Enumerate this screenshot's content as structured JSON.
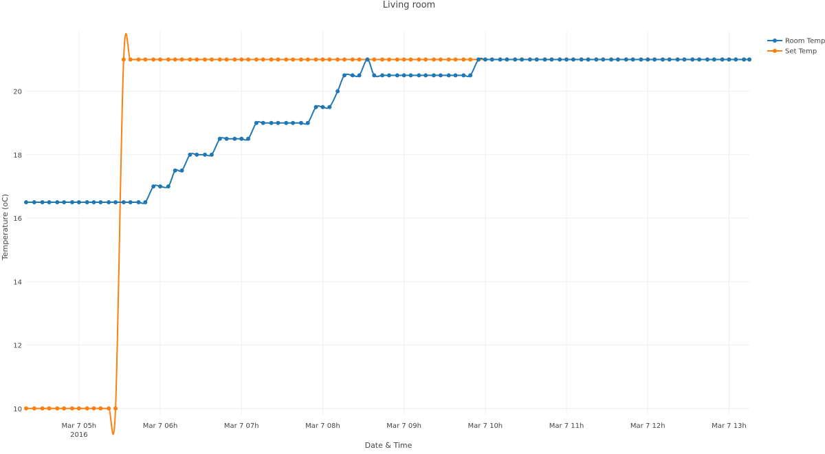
{
  "chart_data": {
    "type": "line",
    "title": "Living room",
    "xlabel": "Date & Time",
    "ylabel": "Temperature (oC)",
    "x_range": [
      "2016-03-07 04:21",
      "2016-03-07 13:15"
    ],
    "ylim": [
      9.8,
      21.9
    ],
    "yticks": [
      10,
      12,
      14,
      16,
      18,
      20
    ],
    "xticks": [
      {
        "time": "2016-03-07 05:00",
        "label": "Mar 7 05h",
        "sublabel": "2016"
      },
      {
        "time": "2016-03-07 06:00",
        "label": "Mar 7 06h",
        "sublabel": ""
      },
      {
        "time": "2016-03-07 07:00",
        "label": "Mar 7 07h",
        "sublabel": ""
      },
      {
        "time": "2016-03-07 08:00",
        "label": "Mar 7 08h",
        "sublabel": ""
      },
      {
        "time": "2016-03-07 09:00",
        "label": "Mar 7 09h",
        "sublabel": ""
      },
      {
        "time": "2016-03-07 10:00",
        "label": "Mar 7 10h",
        "sublabel": ""
      },
      {
        "time": "2016-03-07 11:00",
        "label": "Mar 7 11h",
        "sublabel": ""
      },
      {
        "time": "2016-03-07 12:00",
        "label": "Mar 7 12h",
        "sublabel": ""
      },
      {
        "time": "2016-03-07 13:00",
        "label": "Mar 7 13h",
        "sublabel": ""
      }
    ],
    "grid": true,
    "legend_position": "top-right",
    "series": [
      {
        "name": "Room Temp",
        "color": "#1f77b4",
        "points": [
          [
            "2016-03-07 04:21",
            16.5
          ],
          [
            "2016-03-07 04:27",
            16.5
          ],
          [
            "2016-03-07 04:33",
            16.5
          ],
          [
            "2016-03-07 04:38",
            16.5
          ],
          [
            "2016-03-07 04:44",
            16.5
          ],
          [
            "2016-03-07 04:49",
            16.5
          ],
          [
            "2016-03-07 04:55",
            16.5
          ],
          [
            "2016-03-07 05:00",
            16.5
          ],
          [
            "2016-03-07 05:06",
            16.5
          ],
          [
            "2016-03-07 05:11",
            16.5
          ],
          [
            "2016-03-07 05:16",
            16.5
          ],
          [
            "2016-03-07 05:22",
            16.5
          ],
          [
            "2016-03-07 05:27",
            16.5
          ],
          [
            "2016-03-07 05:33",
            16.5
          ],
          [
            "2016-03-07 05:38",
            16.5
          ],
          [
            "2016-03-07 05:44",
            16.5
          ],
          [
            "2016-03-07 05:49",
            16.5
          ],
          [
            "2016-03-07 05:55",
            17.0
          ],
          [
            "2016-03-07 06:00",
            17.0
          ],
          [
            "2016-03-07 06:06",
            17.0
          ],
          [
            "2016-03-07 06:11",
            17.5
          ],
          [
            "2016-03-07 06:16",
            17.5
          ],
          [
            "2016-03-07 06:22",
            18.0
          ],
          [
            "2016-03-07 06:27",
            18.0
          ],
          [
            "2016-03-07 06:33",
            18.0
          ],
          [
            "2016-03-07 06:38",
            18.0
          ],
          [
            "2016-03-07 06:44",
            18.5
          ],
          [
            "2016-03-07 06:49",
            18.5
          ],
          [
            "2016-03-07 06:55",
            18.5
          ],
          [
            "2016-03-07 07:00",
            18.5
          ],
          [
            "2016-03-07 07:05",
            18.5
          ],
          [
            "2016-03-07 07:11",
            19.0
          ],
          [
            "2016-03-07 07:16",
            19.0
          ],
          [
            "2016-03-07 07:22",
            19.0
          ],
          [
            "2016-03-07 07:27",
            19.0
          ],
          [
            "2016-03-07 07:33",
            19.0
          ],
          [
            "2016-03-07 07:38",
            19.0
          ],
          [
            "2016-03-07 07:44",
            19.0
          ],
          [
            "2016-03-07 07:49",
            19.0
          ],
          [
            "2016-03-07 07:55",
            19.5
          ],
          [
            "2016-03-07 08:00",
            19.5
          ],
          [
            "2016-03-07 08:05",
            19.5
          ],
          [
            "2016-03-07 08:11",
            20.0
          ],
          [
            "2016-03-07 08:16",
            20.5
          ],
          [
            "2016-03-07 08:22",
            20.5
          ],
          [
            "2016-03-07 08:27",
            20.5
          ],
          [
            "2016-03-07 08:33",
            21.0
          ],
          [
            "2016-03-07 08:38",
            20.5
          ],
          [
            "2016-03-07 08:44",
            20.5
          ],
          [
            "2016-03-07 08:49",
            20.5
          ],
          [
            "2016-03-07 08:55",
            20.5
          ],
          [
            "2016-03-07 09:00",
            20.5
          ],
          [
            "2016-03-07 09:05",
            20.5
          ],
          [
            "2016-03-07 09:11",
            20.5
          ],
          [
            "2016-03-07 09:16",
            20.5
          ],
          [
            "2016-03-07 09:22",
            20.5
          ],
          [
            "2016-03-07 09:27",
            20.5
          ],
          [
            "2016-03-07 09:33",
            20.5
          ],
          [
            "2016-03-07 09:38",
            20.5
          ],
          [
            "2016-03-07 09:44",
            20.5
          ],
          [
            "2016-03-07 09:49",
            20.5
          ],
          [
            "2016-03-07 09:55",
            21.0
          ],
          [
            "2016-03-07 10:00",
            21.0
          ],
          [
            "2016-03-07 10:05",
            21.0
          ],
          [
            "2016-03-07 10:11",
            21.0
          ],
          [
            "2016-03-07 10:16",
            21.0
          ],
          [
            "2016-03-07 10:22",
            21.0
          ],
          [
            "2016-03-07 10:27",
            21.0
          ],
          [
            "2016-03-07 10:33",
            21.0
          ],
          [
            "2016-03-07 10:38",
            21.0
          ],
          [
            "2016-03-07 10:44",
            21.0
          ],
          [
            "2016-03-07 10:49",
            21.0
          ],
          [
            "2016-03-07 10:55",
            21.0
          ],
          [
            "2016-03-07 11:00",
            21.0
          ],
          [
            "2016-03-07 11:05",
            21.0
          ],
          [
            "2016-03-07 11:11",
            21.0
          ],
          [
            "2016-03-07 11:16",
            21.0
          ],
          [
            "2016-03-07 11:22",
            21.0
          ],
          [
            "2016-03-07 11:27",
            21.0
          ],
          [
            "2016-03-07 11:33",
            21.0
          ],
          [
            "2016-03-07 11:38",
            21.0
          ],
          [
            "2016-03-07 11:44",
            21.0
          ],
          [
            "2016-03-07 11:49",
            21.0
          ],
          [
            "2016-03-07 11:55",
            21.0
          ],
          [
            "2016-03-07 12:00",
            21.0
          ],
          [
            "2016-03-07 12:05",
            21.0
          ],
          [
            "2016-03-07 12:11",
            21.0
          ],
          [
            "2016-03-07 12:16",
            21.0
          ],
          [
            "2016-03-07 12:22",
            21.0
          ],
          [
            "2016-03-07 12:27",
            21.0
          ],
          [
            "2016-03-07 12:33",
            21.0
          ],
          [
            "2016-03-07 12:38",
            21.0
          ],
          [
            "2016-03-07 12:44",
            21.0
          ],
          [
            "2016-03-07 12:49",
            21.0
          ],
          [
            "2016-03-07 12:55",
            21.0
          ],
          [
            "2016-03-07 13:00",
            21.0
          ],
          [
            "2016-03-07 13:05",
            21.0
          ],
          [
            "2016-03-07 13:11",
            21.0
          ],
          [
            "2016-03-07 13:15",
            21.0
          ]
        ]
      },
      {
        "name": "Set Temp",
        "color": "#ff7f0e",
        "points": [
          [
            "2016-03-07 04:21",
            10.0
          ],
          [
            "2016-03-07 04:27",
            10.0
          ],
          [
            "2016-03-07 04:33",
            10.0
          ],
          [
            "2016-03-07 04:38",
            10.0
          ],
          [
            "2016-03-07 04:44",
            10.0
          ],
          [
            "2016-03-07 04:49",
            10.0
          ],
          [
            "2016-03-07 04:55",
            10.0
          ],
          [
            "2016-03-07 05:00",
            10.0
          ],
          [
            "2016-03-07 05:06",
            10.0
          ],
          [
            "2016-03-07 05:11",
            10.0
          ],
          [
            "2016-03-07 05:16",
            10.0
          ],
          [
            "2016-03-07 05:22",
            10.0
          ],
          [
            "2016-03-07 05:27",
            10.0
          ],
          [
            "2016-03-07 05:33",
            21.0
          ],
          [
            "2016-03-07 05:38",
            21.0
          ],
          [
            "2016-03-07 05:44",
            21.0
          ],
          [
            "2016-03-07 05:49",
            21.0
          ],
          [
            "2016-03-07 05:55",
            21.0
          ],
          [
            "2016-03-07 06:00",
            21.0
          ],
          [
            "2016-03-07 06:06",
            21.0
          ],
          [
            "2016-03-07 06:11",
            21.0
          ],
          [
            "2016-03-07 06:16",
            21.0
          ],
          [
            "2016-03-07 06:22",
            21.0
          ],
          [
            "2016-03-07 06:27",
            21.0
          ],
          [
            "2016-03-07 06:33",
            21.0
          ],
          [
            "2016-03-07 06:38",
            21.0
          ],
          [
            "2016-03-07 06:44",
            21.0
          ],
          [
            "2016-03-07 06:49",
            21.0
          ],
          [
            "2016-03-07 06:55",
            21.0
          ],
          [
            "2016-03-07 07:00",
            21.0
          ],
          [
            "2016-03-07 07:05",
            21.0
          ],
          [
            "2016-03-07 07:11",
            21.0
          ],
          [
            "2016-03-07 07:16",
            21.0
          ],
          [
            "2016-03-07 07:22",
            21.0
          ],
          [
            "2016-03-07 07:27",
            21.0
          ],
          [
            "2016-03-07 07:33",
            21.0
          ],
          [
            "2016-03-07 07:38",
            21.0
          ],
          [
            "2016-03-07 07:44",
            21.0
          ],
          [
            "2016-03-07 07:49",
            21.0
          ],
          [
            "2016-03-07 07:55",
            21.0
          ],
          [
            "2016-03-07 08:00",
            21.0
          ],
          [
            "2016-03-07 08:05",
            21.0
          ],
          [
            "2016-03-07 08:11",
            21.0
          ],
          [
            "2016-03-07 08:16",
            21.0
          ],
          [
            "2016-03-07 08:22",
            21.0
          ],
          [
            "2016-03-07 08:27",
            21.0
          ],
          [
            "2016-03-07 08:33",
            21.0
          ],
          [
            "2016-03-07 08:38",
            21.0
          ],
          [
            "2016-03-07 08:44",
            21.0
          ],
          [
            "2016-03-07 08:49",
            21.0
          ],
          [
            "2016-03-07 08:55",
            21.0
          ],
          [
            "2016-03-07 09:00",
            21.0
          ],
          [
            "2016-03-07 09:05",
            21.0
          ],
          [
            "2016-03-07 09:11",
            21.0
          ],
          [
            "2016-03-07 09:16",
            21.0
          ],
          [
            "2016-03-07 09:22",
            21.0
          ],
          [
            "2016-03-07 09:27",
            21.0
          ],
          [
            "2016-03-07 09:33",
            21.0
          ],
          [
            "2016-03-07 09:38",
            21.0
          ],
          [
            "2016-03-07 09:44",
            21.0
          ],
          [
            "2016-03-07 09:49",
            21.0
          ],
          [
            "2016-03-07 09:55",
            21.0
          ],
          [
            "2016-03-07 10:00",
            21.0
          ],
          [
            "2016-03-07 10:05",
            21.0
          ],
          [
            "2016-03-07 10:11",
            21.0
          ],
          [
            "2016-03-07 10:16",
            21.0
          ],
          [
            "2016-03-07 10:22",
            21.0
          ],
          [
            "2016-03-07 10:27",
            21.0
          ],
          [
            "2016-03-07 10:33",
            21.0
          ],
          [
            "2016-03-07 10:38",
            21.0
          ],
          [
            "2016-03-07 10:44",
            21.0
          ],
          [
            "2016-03-07 10:49",
            21.0
          ],
          [
            "2016-03-07 10:55",
            21.0
          ],
          [
            "2016-03-07 11:00",
            21.0
          ],
          [
            "2016-03-07 11:05",
            21.0
          ],
          [
            "2016-03-07 11:11",
            21.0
          ],
          [
            "2016-03-07 11:16",
            21.0
          ],
          [
            "2016-03-07 11:22",
            21.0
          ],
          [
            "2016-03-07 11:27",
            21.0
          ],
          [
            "2016-03-07 11:33",
            21.0
          ],
          [
            "2016-03-07 11:38",
            21.0
          ],
          [
            "2016-03-07 11:44",
            21.0
          ],
          [
            "2016-03-07 11:49",
            21.0
          ],
          [
            "2016-03-07 11:55",
            21.0
          ],
          [
            "2016-03-07 12:00",
            21.0
          ],
          [
            "2016-03-07 12:05",
            21.0
          ],
          [
            "2016-03-07 12:11",
            21.0
          ],
          [
            "2016-03-07 12:16",
            21.0
          ],
          [
            "2016-03-07 12:22",
            21.0
          ],
          [
            "2016-03-07 12:27",
            21.0
          ],
          [
            "2016-03-07 12:33",
            21.0
          ],
          [
            "2016-03-07 12:38",
            21.0
          ],
          [
            "2016-03-07 12:44",
            21.0
          ],
          [
            "2016-03-07 12:49",
            21.0
          ],
          [
            "2016-03-07 12:55",
            21.0
          ],
          [
            "2016-03-07 13:00",
            21.0
          ],
          [
            "2016-03-07 13:05",
            21.0
          ],
          [
            "2016-03-07 13:11",
            21.0
          ],
          [
            "2016-03-07 13:15",
            21.0
          ]
        ]
      }
    ]
  }
}
